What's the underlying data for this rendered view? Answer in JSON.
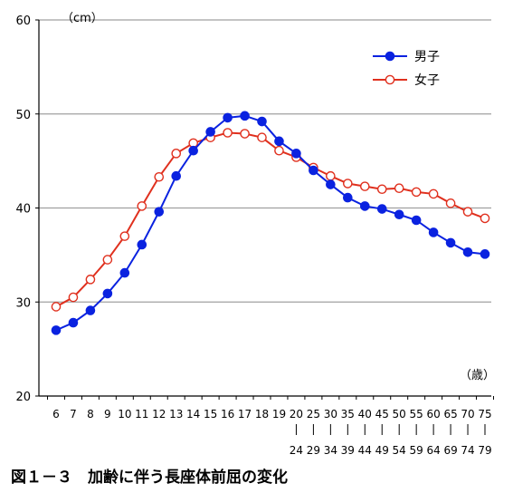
{
  "chart_data": {
    "type": "line",
    "y_unit": "（cm）",
    "x_unit": "（歳）",
    "ylim": [
      20,
      60
    ],
    "yticks": [
      20,
      30,
      40,
      50,
      60
    ],
    "grid": "horizontal",
    "legend_position": "top-right",
    "categories": [
      "6",
      "7",
      "8",
      "9",
      "10",
      "11",
      "12",
      "13",
      "14",
      "15",
      "16",
      "17",
      "18",
      "19",
      "20\n|\n24",
      "25\n|\n29",
      "30\n|\n34",
      "35\n|\n39",
      "40\n|\n44",
      "45\n|\n49",
      "50\n|\n54",
      "55\n|\n59",
      "60\n|\n64",
      "65\n|\n69",
      "70\n|\n74",
      "75\n|\n79"
    ],
    "tick_top": [
      "6",
      "7",
      "8",
      "9",
      "10",
      "11",
      "12",
      "13",
      "14",
      "15",
      "16",
      "17",
      "18",
      "19",
      "20",
      "25",
      "30",
      "35",
      "40",
      "45",
      "50",
      "55",
      "60",
      "65",
      "70",
      "75"
    ],
    "tick_bottom": [
      "",
      "",
      "",
      "",
      "",
      "",
      "",
      "",
      "",
      "",
      "",
      "",
      "",
      "",
      "24",
      "29",
      "34",
      "39",
      "44",
      "49",
      "54",
      "59",
      "64",
      "69",
      "74",
      "79"
    ],
    "series": [
      {
        "name": "男子",
        "color": "#0a22e0",
        "marker": "filled-circle",
        "values": [
          27.0,
          27.8,
          29.1,
          30.9,
          33.1,
          36.1,
          39.6,
          43.4,
          46.1,
          48.1,
          49.6,
          49.8,
          49.2,
          47.1,
          45.8,
          44.0,
          42.5,
          41.1,
          40.2,
          39.9,
          39.3,
          38.7,
          37.4,
          36.3,
          35.3,
          35.1
        ]
      },
      {
        "name": "女子",
        "color": "#e0301e",
        "marker": "open-circle",
        "values": [
          29.5,
          30.5,
          32.4,
          34.5,
          37.0,
          40.2,
          43.3,
          45.8,
          46.9,
          47.5,
          48.0,
          47.9,
          47.5,
          46.1,
          45.4,
          44.3,
          43.4,
          42.6,
          42.3,
          42.0,
          42.1,
          41.7,
          41.5,
          40.5,
          39.6,
          38.9
        ]
      }
    ]
  },
  "caption": "図１－３　加齢に伴う長座体前屈の変化"
}
